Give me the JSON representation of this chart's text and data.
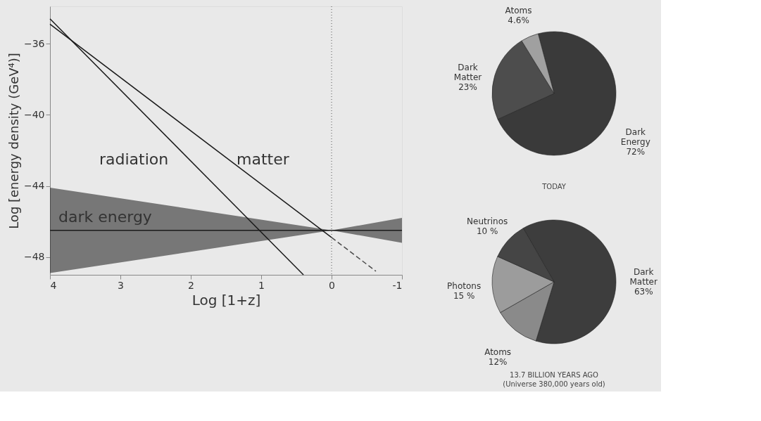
{
  "chart_data": [
    {
      "type": "line",
      "xlabel": "Log [1+z]",
      "ylabel": "Log [energy density (GeV⁴)]",
      "xlim": [
        4,
        -1
      ],
      "ylim": [
        -49,
        -33.9
      ],
      "xticks": [
        {
          "value": 4,
          "label": "4"
        },
        {
          "value": 3,
          "label": "3"
        },
        {
          "value": 2,
          "label": "2"
        },
        {
          "value": 1,
          "label": "1"
        },
        {
          "value": 0,
          "label": "0"
        },
        {
          "value": -1,
          "label": "-1"
        }
      ],
      "yticks": [
        -48,
        -44,
        -40,
        -36
      ],
      "grid": false,
      "marker": "none",
      "series": [
        {
          "type": "line",
          "color": "#1a1a1a",
          "x": [
            4,
            0,
            -1
          ],
          "values": [
            -46.5,
            -46.5,
            -46.5
          ],
          "lower": [
            -48.9,
            -46.5,
            -47.2
          ],
          "upper": [
            -44.1,
            -46.5,
            -45.8
          ],
          "line_style": "solid"
        },
        {
          "type": "line",
          "color": "#1a1a1a",
          "x": [
            4,
            0.4
          ],
          "values": [
            -34.6,
            -49
          ],
          "line_style": "solid"
        },
        {
          "type": "line",
          "color": "#1a1a1a",
          "x": [
            4,
            0
          ],
          "values": [
            -34.9,
            -46.9
          ],
          "line_style": "solid"
        },
        {
          "type": "line",
          "color": "#4a4a4a",
          "x": [
            0,
            -0.63
          ],
          "values": [
            -46.9,
            -48.8
          ],
          "line_style": "dashed"
        }
      ],
      "ref_lines": [
        {
          "axis": "x",
          "value": 0,
          "color": "#555555",
          "line_style": "dotted"
        }
      ],
      "annotations": [
        "radiation",
        "matter",
        "dark energy"
      ]
    },
    {
      "type": "pie",
      "title": "TODAY",
      "categories": [
        "Dark Energy",
        "Dark Matter",
        "Atoms"
      ],
      "values": [
        72,
        23,
        4.6
      ],
      "value_labels": [
        "72%",
        "23%",
        "4.6%"
      ],
      "colors": [
        "#3a3a3a",
        "#4d4d4d",
        "#a0a0a0"
      ]
    },
    {
      "type": "pie",
      "title": "13.7 BILLION YEARS AGO",
      "subtitle": "(Universe 380,000 years old)",
      "categories": [
        "Dark Matter",
        "Atoms",
        "Photons",
        "Neutrinos"
      ],
      "values": [
        63,
        12,
        15,
        10
      ],
      "value_labels": [
        "63%",
        "12%",
        "15 %",
        "10 %"
      ],
      "colors": [
        "#3d3d3d",
        "#8a8a8a",
        "#9c9c9c",
        "#454545"
      ]
    }
  ]
}
